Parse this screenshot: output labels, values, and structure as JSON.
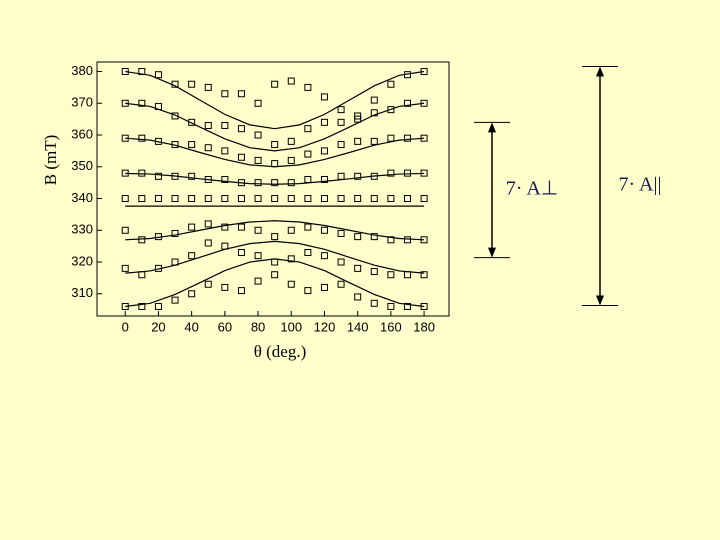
{
  "chart_data": {
    "type": "scatter",
    "xlabel": "θ (deg.)",
    "ylabel": "B (mT)",
    "xlim": [
      -17,
      195
    ],
    "ylim": [
      303,
      383
    ],
    "xticks": [
      0,
      20,
      40,
      60,
      80,
      100,
      120,
      140,
      160,
      180
    ],
    "yticks": [
      310,
      320,
      330,
      340,
      350,
      360,
      370,
      380
    ],
    "color": "#000000",
    "x": [
      0,
      10,
      20,
      30,
      40,
      50,
      60,
      70,
      80,
      90,
      100,
      110,
      120,
      130,
      140,
      150,
      160,
      170,
      180
    ],
    "series": [
      {
        "values": [
          380,
          380,
          379,
          376,
          376,
          375,
          373,
          373,
          370,
          376,
          377,
          375,
          372,
          368,
          366,
          371,
          376,
          379,
          380
        ]
      },
      {
        "values": [
          370,
          370,
          369,
          366,
          364,
          363,
          363,
          362,
          360,
          357,
          358,
          362,
          364,
          364,
          365,
          367,
          368,
          370,
          370
        ]
      },
      {
        "values": [
          359,
          359,
          358,
          357,
          357,
          356,
          355,
          353,
          352,
          351,
          352,
          354,
          355,
          357,
          358,
          358,
          359,
          359,
          359
        ]
      },
      {
        "values": [
          348,
          348,
          347,
          347,
          347,
          346,
          346,
          345,
          345,
          345,
          345,
          346,
          346,
          347,
          347,
          347,
          348,
          348,
          348
        ]
      },
      {
        "values": [
          340,
          340,
          340,
          340,
          340,
          340,
          340,
          340,
          340,
          340,
          340,
          340,
          340,
          340,
          340,
          340,
          340,
          340,
          340
        ]
      },
      {
        "values": [
          330,
          327,
          328,
          329,
          331,
          332,
          331,
          331,
          330,
          328,
          330,
          331,
          330,
          329,
          328,
          328,
          327,
          327,
          327
        ]
      },
      {
        "values": [
          318,
          316,
          318,
          320,
          322,
          326,
          325,
          323,
          322,
          320,
          321,
          323,
          322,
          320,
          318,
          317,
          316,
          316,
          316
        ]
      },
      {
        "values": [
          306,
          306,
          306,
          308,
          310,
          313,
          312,
          311,
          314,
          316,
          313,
          311,
          312,
          313,
          309,
          307,
          306,
          306,
          306
        ]
      }
    ],
    "fit_x": [
      0,
      15,
      30,
      45,
      60,
      75,
      90,
      105,
      120,
      135,
      150,
      165,
      180
    ],
    "fits": [
      {
        "values": [
          380,
          378.8,
          375.5,
          371,
          366.5,
          363.2,
          362,
          363.2,
          366.5,
          371,
          375.5,
          378.8,
          380
        ]
      },
      {
        "values": [
          370,
          369,
          366.3,
          362.5,
          358.8,
          356,
          355,
          356,
          358.8,
          362.5,
          366.3,
          369,
          370
        ]
      },
      {
        "values": [
          359,
          358.4,
          356.8,
          354.5,
          352.3,
          350.6,
          350,
          350.6,
          352.3,
          354.5,
          356.8,
          358.4,
          359
        ]
      },
      {
        "values": [
          347.9,
          347.7,
          347.1,
          346.2,
          345.4,
          344.7,
          344.5,
          344.7,
          345.4,
          346.2,
          347.1,
          347.7,
          347.9
        ]
      },
      {
        "values": [
          337.6,
          337.6,
          337.6,
          337.6,
          337.6,
          337.6,
          337.6,
          337.6,
          337.6,
          337.6,
          337.6,
          337.6,
          337.6
        ]
      },
      {
        "values": [
          327,
          327.4,
          328.5,
          330,
          331.5,
          332.6,
          333,
          332.6,
          331.5,
          330,
          328.5,
          327.4,
          327
        ]
      },
      {
        "values": [
          316.5,
          317.2,
          319,
          321.5,
          324,
          325.8,
          326.5,
          325.8,
          324,
          321.5,
          319,
          317.2,
          316.5
        ]
      },
      {
        "values": [
          306,
          307,
          309.8,
          313.5,
          317.3,
          320,
          321,
          320,
          317.3,
          313.5,
          309.8,
          307,
          306
        ]
      }
    ],
    "annotations": [
      {
        "text": "7· A⊥",
        "range": [
          364,
          321.4
        ]
      },
      {
        "text": "7· A||",
        "range": [
          381.6,
          306.3
        ]
      }
    ]
  }
}
